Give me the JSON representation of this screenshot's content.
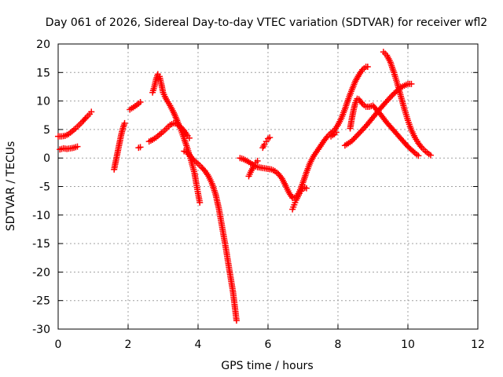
{
  "chart_data": {
    "type": "scatter",
    "title": "Day 061 of 2026, Sidereal Day-to-day VTEC variation (SDTVAR) for receiver wfl2",
    "xlabel": "GPS time / hours",
    "ylabel": "SDTVAR / TECUs",
    "xlim": [
      0,
      12
    ],
    "ylim": [
      -30,
      20
    ],
    "xticks": [
      "0",
      "2",
      "4",
      "6",
      "8",
      "10",
      "12"
    ],
    "yticks": [
      "-30",
      "-25",
      "-20",
      "-15",
      "-10",
      "-5",
      "0",
      "5",
      "10",
      "15",
      "20"
    ],
    "grid": true,
    "legend": "none",
    "marker": "plus",
    "color": "#ff0000",
    "series": [
      {
        "x": [
          0.0,
          0.1,
          0.2,
          0.3,
          0.4,
          0.5,
          0.6,
          0.7,
          0.8,
          0.9,
          0.95
        ],
        "y": [
          3.8,
          3.8,
          3.9,
          4.2,
          4.7,
          5.2,
          5.8,
          6.4,
          7.1,
          7.7,
          8.1
        ]
      },
      {
        "x": [
          0.05,
          0.15,
          0.25,
          0.35,
          0.45,
          0.55
        ],
        "y": [
          1.5,
          1.7,
          1.6,
          1.7,
          1.8,
          2.0
        ]
      },
      {
        "x": [
          1.6,
          1.65,
          1.7,
          1.75,
          1.8,
          1.85,
          1.9
        ],
        "y": [
          -2.0,
          -0.5,
          1.0,
          2.5,
          4.0,
          5.2,
          6.1
        ]
      },
      {
        "x": [
          2.05,
          2.15,
          2.25,
          2.35
        ],
        "y": [
          8.5,
          8.9,
          9.3,
          9.8
        ]
      },
      {
        "x": [
          2.3,
          2.35
        ],
        "y": [
          1.8,
          1.9
        ]
      },
      {
        "x": [
          2.6,
          2.7,
          2.8,
          2.9,
          3.0,
          3.1,
          3.2,
          3.3,
          3.4,
          3.5,
          3.6,
          3.7,
          3.75
        ],
        "y": [
          2.9,
          3.2,
          3.6,
          4.1,
          4.6,
          5.2,
          5.8,
          6.1,
          6.0,
          5.5,
          4.8,
          3.9,
          3.5
        ]
      },
      {
        "x": [
          2.7,
          2.75,
          2.8,
          2.85,
          2.9,
          2.95,
          3.0,
          3.05,
          3.1,
          3.2,
          3.3,
          3.4,
          3.5,
          3.6,
          3.7,
          3.8,
          3.9,
          3.95,
          4.0,
          4.05
        ],
        "y": [
          11.5,
          12.5,
          13.8,
          14.7,
          14.3,
          13.0,
          11.5,
          10.8,
          10.2,
          9.2,
          8.0,
          6.6,
          5.1,
          3.4,
          1.6,
          -0.4,
          -2.7,
          -4.5,
          -6.2,
          -7.8
        ]
      },
      {
        "x": [
          3.6,
          3.7,
          3.8,
          3.9,
          4.0,
          4.1,
          4.2,
          4.3,
          4.4,
          4.5,
          4.6,
          4.7,
          4.8,
          4.9,
          5.0,
          5.05,
          5.1
        ],
        "y": [
          1.2,
          1.0,
          0.2,
          -0.5,
          -1.0,
          -1.6,
          -2.3,
          -3.2,
          -4.5,
          -6.3,
          -9.0,
          -12.5,
          -16.0,
          -19.8,
          -23.5,
          -26.0,
          -28.5
        ]
      },
      {
        "x": [
          5.2,
          5.3,
          5.4,
          5.5,
          5.6,
          5.7,
          5.8,
          5.9,
          6.0,
          6.1,
          6.2,
          6.3,
          6.4,
          6.5,
          6.6,
          6.7,
          6.8,
          6.9,
          7.0,
          7.1,
          7.2,
          7.3,
          7.4,
          7.5,
          7.6,
          7.7,
          7.8,
          7.9,
          8.0,
          8.1,
          8.2,
          8.3,
          8.4,
          8.5,
          8.6,
          8.7,
          8.8,
          8.85
        ],
        "y": [
          0.0,
          -0.2,
          -0.5,
          -0.9,
          -1.3,
          -1.6,
          -1.7,
          -1.8,
          -1.9,
          -2.0,
          -2.3,
          -2.8,
          -3.6,
          -4.8,
          -6.1,
          -7.0,
          -6.9,
          -5.9,
          -4.3,
          -2.5,
          -0.9,
          0.3,
          1.2,
          2.1,
          3.0,
          3.8,
          4.4,
          4.9,
          5.8,
          7.0,
          8.6,
          10.4,
          12.0,
          13.5,
          14.6,
          15.5,
          16.0,
          16.0
        ]
      },
      {
        "x": [
          5.45,
          5.5,
          5.55,
          5.6,
          5.65,
          5.7
        ],
        "y": [
          -3.2,
          -2.5,
          -1.9,
          -1.3,
          -0.8,
          -0.5
        ]
      },
      {
        "x": [
          5.85,
          5.9,
          5.95,
          6.0,
          6.05
        ],
        "y": [
          1.8,
          2.4,
          2.9,
          3.4,
          3.6
        ]
      },
      {
        "x": [
          6.7,
          6.75,
          6.8,
          6.85,
          6.9,
          6.95,
          7.0,
          7.05,
          7.1
        ],
        "y": [
          -9.0,
          -8.2,
          -7.4,
          -6.8,
          -6.2,
          -5.8,
          -5.4,
          -5.2,
          -5.3
        ]
      },
      {
        "x": [
          7.8,
          7.85,
          7.9,
          7.95
        ],
        "y": [
          3.8,
          4.0,
          4.2,
          4.5
        ]
      },
      {
        "x": [
          8.2,
          8.4,
          8.6,
          8.8,
          9.0,
          9.2,
          9.4,
          9.6,
          9.8,
          10.0,
          10.1
        ],
        "y": [
          2.2,
          3.0,
          4.3,
          5.6,
          7.1,
          8.6,
          10.0,
          11.3,
          12.4,
          13.0,
          13.0
        ]
      },
      {
        "x": [
          8.35,
          8.4,
          8.45,
          8.5,
          8.55,
          8.6,
          8.7,
          8.8,
          8.9,
          9.0,
          9.2,
          9.4,
          9.6,
          9.8,
          10.0,
          10.2,
          10.3
        ],
        "y": [
          5.2,
          7.0,
          8.5,
          9.7,
          10.4,
          10.3,
          9.5,
          9.0,
          9.0,
          9.2,
          7.8,
          6.2,
          4.8,
          3.4,
          2.0,
          0.9,
          0.4
        ]
      },
      {
        "x": [
          9.3,
          9.4,
          9.5,
          9.6,
          9.7,
          9.8,
          9.9,
          10.0,
          10.1,
          10.2,
          10.3,
          10.4,
          10.5,
          10.6,
          10.65
        ],
        "y": [
          18.6,
          18.0,
          16.8,
          15.0,
          13.0,
          10.8,
          8.6,
          6.6,
          4.9,
          3.6,
          2.6,
          1.8,
          1.2,
          0.7,
          0.5
        ]
      }
    ]
  }
}
